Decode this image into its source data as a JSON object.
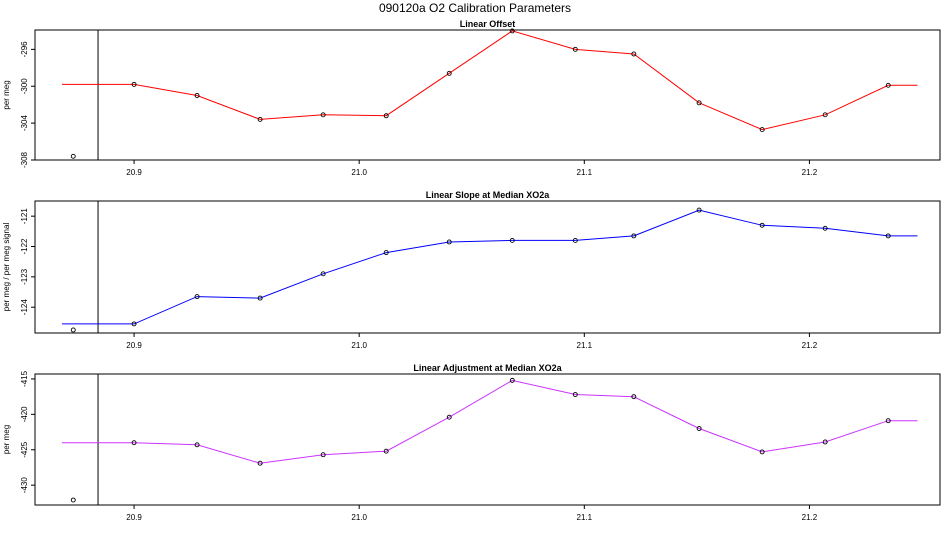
{
  "title": "090120a   O2 Calibration Parameters",
  "chart_data": [
    {
      "type": "line",
      "title": "Linear Offset",
      "ylabel": "per meg",
      "color": "#ff0000",
      "xlim": [
        20.856,
        21.258
      ],
      "ylim": [
        -308,
        -293.9
      ],
      "xticks": [
        "20.9",
        "21.0",
        "21.1",
        "21.2"
      ],
      "xtick_values": [
        20.9,
        21.0,
        21.1,
        21.2
      ],
      "yticks": [
        "-296",
        "-300",
        "-304",
        "-308"
      ],
      "ytick_values": [
        -296,
        -300,
        -304,
        -308
      ],
      "vline_x": 20.884,
      "outlier": {
        "x": 20.873,
        "y": -307.6
      },
      "x": [
        20.9,
        20.928,
        20.956,
        20.984,
        21.012,
        21.04,
        21.068,
        21.096,
        21.122,
        21.151,
        21.179,
        21.207,
        21.235
      ],
      "y": [
        -299.8,
        -301.0,
        -303.6,
        -303.1,
        -303.2,
        -298.6,
        -294.0,
        -296.0,
        -296.5,
        -301.8,
        -304.7,
        -303.1,
        -299.9
      ],
      "line_start_x": 20.868,
      "line_end_x": 21.248
    },
    {
      "type": "line",
      "title": "Linear Slope at Median XO2a",
      "ylabel": "per meg / per meg signal",
      "color": "#0000ff",
      "xlim": [
        20.856,
        21.258
      ],
      "ylim": [
        -124.85,
        -120.5
      ],
      "xticks": [
        "20.9",
        "21.0",
        "21.1",
        "21.2"
      ],
      "xtick_values": [
        20.9,
        21.0,
        21.1,
        21.2
      ],
      "yticks": [
        "-121",
        "-122",
        "-123",
        "-124"
      ],
      "ytick_values": [
        -121,
        -122,
        -123,
        -124
      ],
      "vline_x": 20.884,
      "outlier": {
        "x": 20.873,
        "y": -124.75
      },
      "x": [
        20.9,
        20.928,
        20.956,
        20.984,
        21.012,
        21.04,
        21.068,
        21.096,
        21.122,
        21.151,
        21.179,
        21.207,
        21.235
      ],
      "y": [
        -124.55,
        -123.65,
        -123.7,
        -122.9,
        -122.2,
        -121.85,
        -121.8,
        -121.8,
        -121.65,
        -120.8,
        -121.3,
        -121.4,
        -121.65
      ],
      "line_start_x": 20.868,
      "line_end_x": 21.248
    },
    {
      "type": "line",
      "title": "Linear Adjustment at Median XO2a",
      "ylabel": "per meg",
      "color": "#cc33ff",
      "xlim": [
        20.856,
        21.258
      ],
      "ylim": [
        -432.8,
        -414.3
      ],
      "xticks": [
        "20.9",
        "21.0",
        "21.1",
        "21.2"
      ],
      "xtick_values": [
        20.9,
        21.0,
        21.1,
        21.2
      ],
      "yticks": [
        "-415",
        "-420",
        "-425",
        "-430"
      ],
      "ytick_values": [
        -415,
        -420,
        -425,
        -430
      ],
      "vline_x": 20.884,
      "outlier": {
        "x": 20.873,
        "y": -432.1
      },
      "x": [
        20.9,
        20.928,
        20.956,
        20.984,
        21.012,
        21.04,
        21.068,
        21.096,
        21.122,
        21.151,
        21.179,
        21.207,
        21.235
      ],
      "y": [
        -424.0,
        -424.3,
        -426.9,
        -425.7,
        -425.2,
        -420.4,
        -415.2,
        -417.2,
        -417.5,
        -422.0,
        -425.3,
        -423.9,
        -420.9
      ],
      "line_start_x": 20.868,
      "line_end_x": 21.248
    }
  ]
}
